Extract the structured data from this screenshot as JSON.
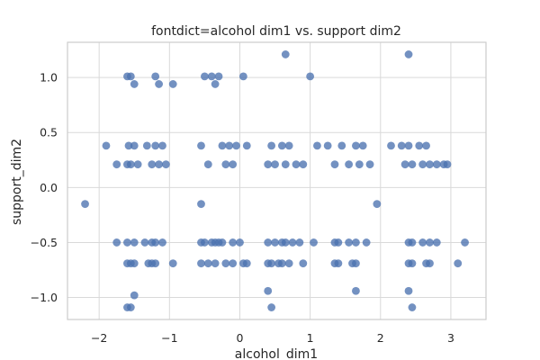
{
  "chart_data": {
    "type": "scatter",
    "title": "fontdict=alcohol dim1 vs. support dim2",
    "xlabel": "alcohol_dim1",
    "ylabel": "support_dim2",
    "xlim": [
      -2.45,
      3.5
    ],
    "ylim": [
      -1.2,
      1.32
    ],
    "xticks": [
      -2,
      -1,
      0,
      1,
      2,
      3
    ],
    "xtick_labels": [
      "−2",
      "−1",
      "0",
      "1",
      "2",
      "3"
    ],
    "yticks": [
      -1.0,
      -0.5,
      0.0,
      0.5,
      1.0
    ],
    "ytick_labels": [
      "−1.0",
      "−0.5",
      "0.0",
      "0.5",
      "1.0"
    ],
    "grid": true,
    "legend": "none",
    "colors": {
      "point": "#4c72b0",
      "grid": "#d9d9d9",
      "spine": "#cccccc",
      "text": "#262626"
    },
    "points": {
      "x": [
        -2.2,
        -1.9,
        -1.75,
        -1.6,
        -1.58,
        -1.55,
        -1.5,
        -1.45,
        -1.32,
        -1.25,
        -1.2,
        -1.15,
        -1.1,
        -1.05,
        -1.6,
        -1.55,
        -1.5,
        -1.2,
        -1.15,
        -0.95,
        -0.5,
        -0.4,
        -0.35,
        -0.3,
        -0.55,
        -0.45,
        -0.25,
        -0.2,
        -0.15,
        -0.1,
        -0.05,
        0.05,
        0.1,
        0.4,
        0.45,
        0.5,
        0.6,
        0.65,
        0.7,
        0.8,
        0.9,
        1.0,
        1.1,
        1.25,
        1.35,
        1.45,
        1.55,
        1.65,
        1.7,
        1.75,
        1.85,
        1.95,
        2.15,
        2.3,
        2.35,
        2.4,
        2.45,
        2.55,
        2.6,
        2.65,
        2.7,
        2.8,
        2.9,
        2.95,
        3.1,
        3.2,
        -1.75,
        -1.6,
        -1.5,
        -1.35,
        -1.25,
        -1.2,
        -1.1,
        -0.55,
        -0.5,
        -0.4,
        -0.35,
        -0.3,
        -0.25,
        -0.1,
        0.0,
        0.4,
        0.5,
        0.6,
        0.65,
        0.75,
        0.85,
        1.05,
        1.35,
        1.4,
        1.55,
        1.65,
        1.8,
        2.4,
        2.45,
        2.6,
        2.7,
        2.8,
        -1.6,
        -1.55,
        -1.5,
        -1.3,
        -1.25,
        -1.2,
        -0.95,
        -0.55,
        -0.45,
        -0.35,
        -0.2,
        -0.1,
        0.05,
        0.1,
        0.4,
        0.45,
        0.55,
        0.6,
        0.7,
        0.9,
        1.35,
        1.4,
        1.6,
        1.65,
        2.4,
        2.45,
        2.65,
        2.7,
        -1.6,
        -1.55,
        -1.5,
        -0.55,
        0.4,
        0.45,
        1.65,
        2.4,
        2.45,
        0.65,
        2.4
      ],
      "y": [
        -0.15,
        0.38,
        0.21,
        0.21,
        0.38,
        0.21,
        0.38,
        0.21,
        0.38,
        0.21,
        0.38,
        0.21,
        0.38,
        0.21,
        1.01,
        1.01,
        0.94,
        1.01,
        0.94,
        0.94,
        1.01,
        1.01,
        0.94,
        1.01,
        0.38,
        0.21,
        0.38,
        0.21,
        0.38,
        0.21,
        0.38,
        1.01,
        0.38,
        0.21,
        0.38,
        0.21,
        0.38,
        0.21,
        0.38,
        0.21,
        0.21,
        1.01,
        0.38,
        0.38,
        0.21,
        0.38,
        0.21,
        0.38,
        0.21,
        0.38,
        0.21,
        -0.15,
        0.38,
        0.38,
        0.21,
        0.38,
        0.21,
        0.38,
        0.21,
        0.38,
        0.21,
        0.21,
        0.21,
        0.21,
        -0.69,
        -0.5,
        -0.5,
        -0.5,
        -0.5,
        -0.5,
        -0.5,
        -0.5,
        -0.5,
        -0.5,
        -0.5,
        -0.5,
        -0.5,
        -0.5,
        -0.5,
        -0.5,
        -0.5,
        -0.5,
        -0.5,
        -0.5,
        -0.5,
        -0.5,
        -0.5,
        -0.5,
        -0.5,
        -0.5,
        -0.5,
        -0.5,
        -0.5,
        -0.5,
        -0.5,
        -0.5,
        -0.5,
        -0.5,
        -0.69,
        -0.69,
        -0.69,
        -0.69,
        -0.69,
        -0.69,
        -0.69,
        -0.69,
        -0.69,
        -0.69,
        -0.69,
        -0.69,
        -0.69,
        -0.69,
        -0.69,
        -0.69,
        -0.69,
        -0.69,
        -0.69,
        -0.69,
        -0.69,
        -0.69,
        -0.69,
        -0.69,
        -0.69,
        -0.69,
        -0.69,
        -0.69,
        -1.09,
        -1.09,
        -0.98,
        -0.15,
        -0.94,
        -1.09,
        -0.94,
        -0.94,
        -1.09,
        1.21,
        1.21
      ]
    }
  }
}
